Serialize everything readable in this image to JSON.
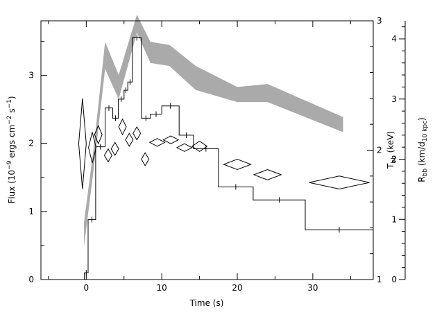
{
  "chart_data": {
    "type": "line",
    "title": "",
    "xlabel": "Time (s)",
    "ylabel_left": "Flux (10^-9 ergs cm^-2 s^-1)",
    "ylabel_right_inner": "T_bb (keV)",
    "ylabel_right_outer": "R_bb (km/d_10 kpc)",
    "xlim": [
      -6,
      38
    ],
    "ylim_flux": [
      0,
      3.8
    ],
    "ylim_tbb": [
      1,
      3
    ],
    "ylim_rbb": [
      0,
      4.3
    ],
    "x_ticks": [
      {
        "value": 0,
        "label": "0"
      },
      {
        "value": 10,
        "label": "10"
      },
      {
        "value": 20,
        "label": "20"
      },
      {
        "value": 30,
        "label": "30"
      }
    ],
    "flux_ticks": [
      {
        "value": 0,
        "label": "0"
      },
      {
        "value": 1,
        "label": "1"
      },
      {
        "value": 2,
        "label": "2"
      },
      {
        "value": 3,
        "label": "3"
      }
    ],
    "tbb_ticks": [
      {
        "value": 1,
        "label": "1"
      },
      {
        "value": 2,
        "label": "2"
      },
      {
        "value": 3,
        "label": "3"
      }
    ],
    "rbb_ticks": [
      {
        "value": 0,
        "label": "0"
      },
      {
        "value": 1,
        "label": "1"
      },
      {
        "value": 2,
        "label": "2"
      },
      {
        "value": 3,
        "label": "3"
      },
      {
        "value": 4,
        "label": "4"
      }
    ],
    "series": [
      {
        "style": "histogram with error bars",
        "axis": "flux",
        "color": "#000000",
        "edges": [
          -0.25,
          0.25,
          1.25,
          2.5,
          3.5,
          4.25,
          5.0,
          5.5,
          6.1,
          7.3,
          8.5,
          10.0,
          12.3,
          14.2,
          17.5,
          22.1,
          29.0,
          38.0
        ],
        "values": [
          0.1,
          0.88,
          1.95,
          2.52,
          2.37,
          2.65,
          2.78,
          2.9,
          3.55,
          2.37,
          2.43,
          2.55,
          2.12,
          1.92,
          1.36,
          1.17,
          0.73
        ]
      },
      {
        "style": "shaded band",
        "axis": "rbb",
        "color": "#aaaaaa",
        "x": [
          -0.3,
          1,
          2.5,
          4.3,
          6.7,
          8.5,
          11,
          14.5,
          20,
          24,
          34
        ],
        "lower": [
          0.55,
          1.85,
          3.5,
          3.0,
          4.1,
          3.6,
          3.55,
          3.15,
          2.95,
          2.95,
          2.45
        ],
        "upper": [
          0.95,
          2.2,
          3.95,
          3.4,
          4.4,
          3.95,
          3.9,
          3.55,
          3.2,
          3.25,
          2.7
        ]
      },
      {
        "style": "diamond error boxes",
        "axis": "tbb",
        "color": "#000000",
        "points": [
          {
            "x": -0.5,
            "xerr": 0.5,
            "y": 2.05,
            "yerr": 0.35
          },
          {
            "x": 0.8,
            "xerr": 0.5,
            "y": 2.02,
            "yerr": 0.12
          },
          {
            "x": 1.6,
            "xerr": 0.5,
            "y": 2.12,
            "yerr": 0.07
          },
          {
            "x": 2.9,
            "xerr": 0.5,
            "y": 1.96,
            "yerr": 0.05
          },
          {
            "x": 3.8,
            "xerr": 0.5,
            "y": 2.01,
            "yerr": 0.05
          },
          {
            "x": 4.8,
            "xerr": 0.5,
            "y": 2.18,
            "yerr": 0.06
          },
          {
            "x": 5.7,
            "xerr": 0.5,
            "y": 2.08,
            "yerr": 0.05
          },
          {
            "x": 6.7,
            "xerr": 0.5,
            "y": 2.13,
            "yerr": 0.05
          },
          {
            "x": 7.8,
            "xerr": 0.5,
            "y": 1.93,
            "yerr": 0.05
          },
          {
            "x": 9.4,
            "xerr": 1.0,
            "y": 2.06,
            "yerr": 0.03
          },
          {
            "x": 11.2,
            "xerr": 1.0,
            "y": 2.08,
            "yerr": 0.03
          },
          {
            "x": 13.0,
            "xerr": 1.0,
            "y": 2.02,
            "yerr": 0.03
          },
          {
            "x": 15.0,
            "xerr": 1.0,
            "y": 2.03,
            "yerr": 0.04
          },
          {
            "x": 20.0,
            "xerr": 1.8,
            "y": 1.89,
            "yerr": 0.04
          },
          {
            "x": 24.0,
            "xerr": 1.8,
            "y": 1.81,
            "yerr": 0.04
          },
          {
            "x": 33.5,
            "xerr": 4.0,
            "y": 1.75,
            "yerr": 0.05
          }
        ]
      }
    ]
  }
}
